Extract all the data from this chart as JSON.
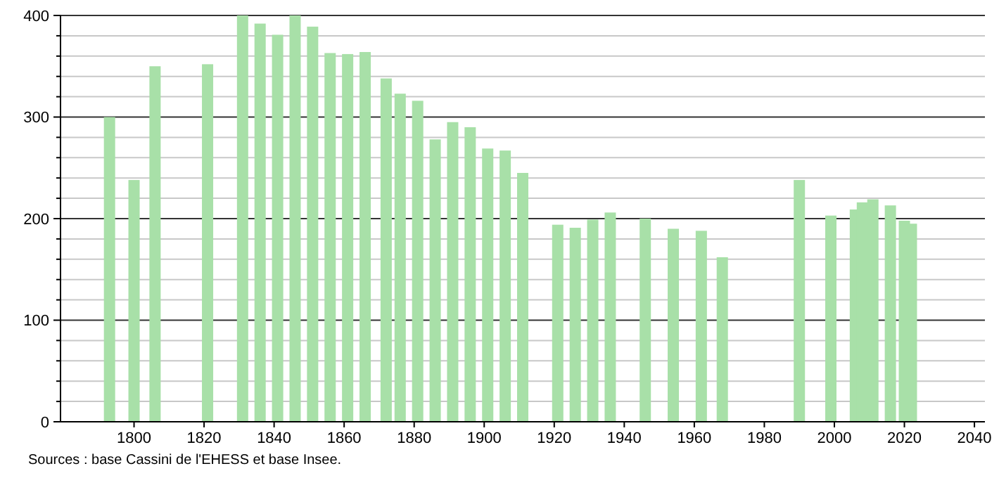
{
  "chart_data": {
    "type": "bar",
    "x": [
      1793,
      1800,
      1806,
      1821,
      1831,
      1836,
      1841,
      1846,
      1851,
      1856,
      1861,
      1866,
      1872,
      1876,
      1881,
      1886,
      1891,
      1896,
      1901,
      1906,
      1911,
      1921,
      1926,
      1931,
      1936,
      1946,
      1954,
      1962,
      1968,
      1990,
      1999,
      2006,
      2008,
      2011,
      2016,
      2020,
      2022
    ],
    "values": [
      300,
      238,
      350,
      352,
      400,
      392,
      381,
      400,
      389,
      363,
      362,
      364,
      338,
      323,
      316,
      278,
      295,
      290,
      269,
      267,
      245,
      194,
      191,
      199,
      206,
      200,
      190,
      188,
      162,
      238,
      203,
      209,
      216,
      219,
      213,
      198,
      195
    ],
    "color": "#a8e0a8",
    "xlim": [
      1779,
      2043
    ],
    "xticks": [
      1800,
      1820,
      1840,
      1860,
      1880,
      1900,
      1920,
      1940,
      1960,
      1980,
      2000,
      2020,
      2040
    ],
    "ylim": [
      0,
      400
    ],
    "yticks": [
      0,
      {
        "value": 20,
        "label": null
      },
      {
        "value": 40,
        "label": null
      },
      {
        "value": 60,
        "label": null
      },
      {
        "value": 80,
        "label": null
      },
      100,
      {
        "value": 120,
        "label": null
      },
      {
        "value": 140,
        "label": null
      },
      {
        "value": 160,
        "label": null
      },
      {
        "value": 180,
        "label": null
      },
      200,
      {
        "value": 220,
        "label": null
      },
      {
        "value": 240,
        "label": null
      },
      {
        "value": 260,
        "label": null
      },
      {
        "value": 280,
        "label": null
      },
      300,
      {
        "value": 320,
        "label": null
      },
      {
        "value": 340,
        "label": null
      },
      {
        "value": 360,
        "label": null
      },
      {
        "value": 380,
        "label": null
      },
      400
    ],
    "grid": true,
    "annotations": [
      "Sources : base Cassini de l'EHESS et base Insee."
    ]
  }
}
